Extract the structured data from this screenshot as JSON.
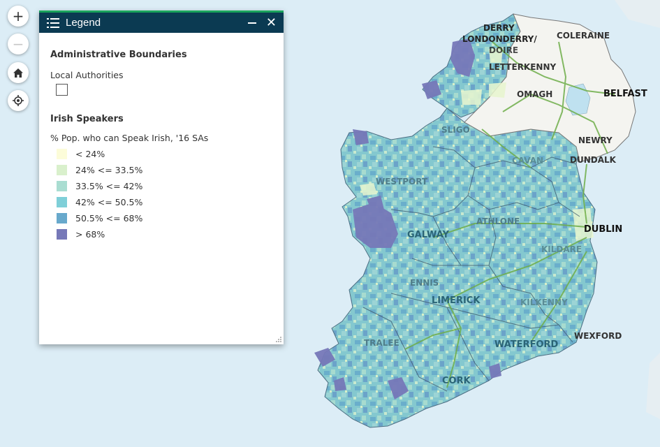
{
  "controls": {
    "zoom_in": "+",
    "zoom_out": "−"
  },
  "legend": {
    "title": "Legend",
    "minimize": "–",
    "close": "✕",
    "boundaries": {
      "title": "Administrative Boundaries",
      "layer": "Local Authorities"
    },
    "speakers": {
      "title": "Irish Speakers",
      "layer": "% Pop. who can Speak Irish, '16 SAs",
      "classes": [
        {
          "label": "< 24%",
          "color": "#fcfcd9"
        },
        {
          "label": "24% <= 33.5%",
          "color": "#d9f0cc"
        },
        {
          "label": "33.5% <= 42%",
          "color": "#a9ddd1"
        },
        {
          "label": "42% <= 50.5%",
          "color": "#7fcfd8"
        },
        {
          "label": "50.5% <= 68%",
          "color": "#68a9cc"
        },
        {
          "label": "> 68%",
          "color": "#7678b8"
        }
      ]
    }
  },
  "map": {
    "sea_color": "#dcedf6",
    "ni_color": "#f4f4f0",
    "road_color": "#6fae4a",
    "places": {
      "derry": "DERRY",
      "londonderry": "LONDONDERRY/",
      "doire": "DOIRE",
      "coleraine": "COLERAINE",
      "letterkenny": "LETTERKENNY",
      "omagh": "OMAGH",
      "belfast": "BELFAST",
      "sligo": "SLIGO",
      "newry": "NEWRY",
      "cavan": "CAVAN",
      "dundalk": "DUNDALK",
      "westport": "WESTPORT",
      "athlone": "ATHLONE",
      "dublin": "DUBLIN",
      "galway": "GALWAY",
      "kildare": "KILDARE",
      "ennis": "ENNIS",
      "limerick": "LIMERICK",
      "kilkenny": "KILKENNY",
      "wexford": "WEXFORD",
      "tralee": "TRALEE",
      "waterford": "WATERFORD",
      "cork": "CORK"
    }
  }
}
